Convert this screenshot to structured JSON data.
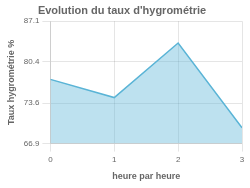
{
  "chart_data": {
    "type": "area",
    "title": "Evolution du taux d'hygrométrie",
    "xlabel": "heure par heure",
    "ylabel": "Taux hygrométrie %",
    "x": [
      0,
      1,
      2,
      3
    ],
    "values": [
      77.5,
      74.5,
      83.5,
      69.5
    ],
    "color": "#5ab4d6",
    "xlim": [
      0,
      3
    ],
    "xticks": [
      0,
      1,
      2,
      3
    ],
    "ylim": [
      66.9,
      87.1
    ],
    "yticks": [
      66.9,
      73.6,
      80.4,
      87.1
    ],
    "grid": true
  }
}
